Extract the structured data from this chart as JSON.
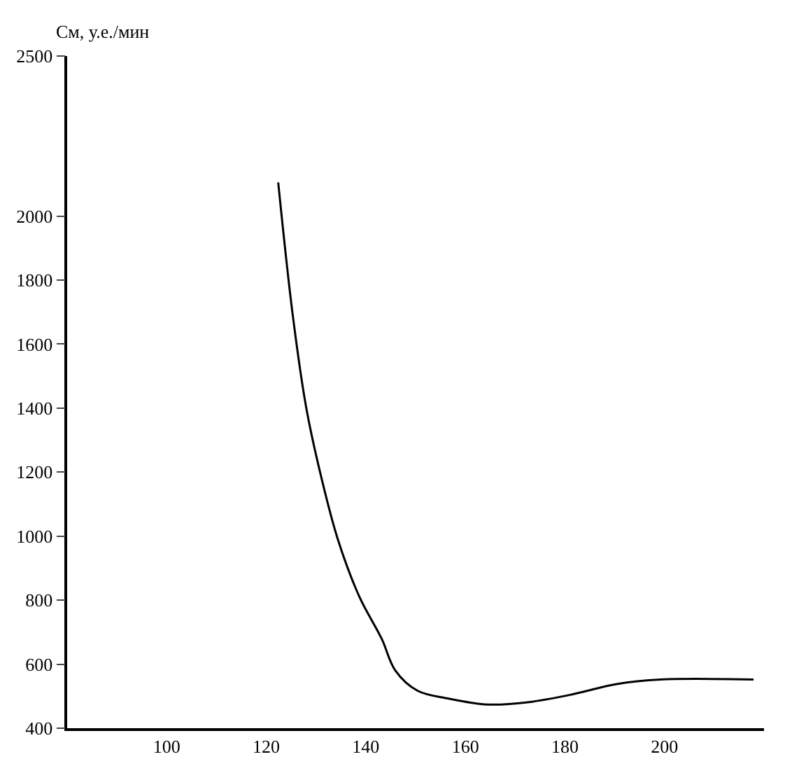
{
  "chart_data": {
    "type": "line",
    "ylabel": "См, у.е./мин",
    "x": [
      122.4,
      125.3,
      128,
      130.7,
      134.4,
      138.7,
      143.2,
      145.9,
      150.4,
      156.5,
      164.5,
      172.5,
      181.3,
      190.4,
      199.2,
      217.9
    ],
    "series": [
      {
        "color": "#000000",
        "values": [
          2105,
          1693,
          1404,
          1207,
          989,
          811,
          679,
          581,
          517,
          493,
          474,
          481,
          505,
          538,
          552,
          552
        ]
      }
    ],
    "xlim": [
      80,
      220
    ],
    "ylim": [
      400,
      2500
    ],
    "xticks": [
      100,
      120,
      140,
      160,
      180,
      200
    ],
    "yticks": [
      400,
      600,
      800,
      1000,
      1200,
      1400,
      1600,
      1800,
      2000,
      2500
    ],
    "legend": false,
    "marker": "none",
    "line_style": "solid"
  }
}
